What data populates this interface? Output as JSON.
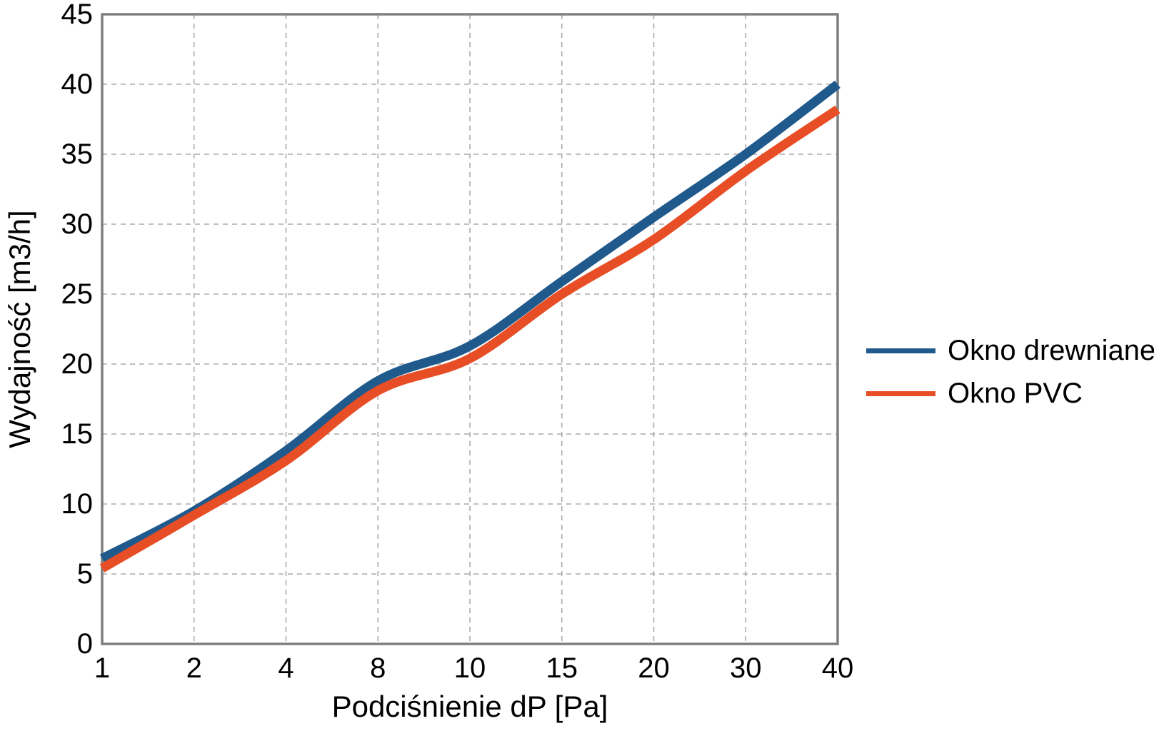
{
  "chart_data": {
    "type": "line",
    "title": "",
    "xlabel": "Podciśnienie dP [Pa]",
    "ylabel": "Wydajność [m3/h]",
    "categories": [
      1,
      2,
      4,
      8,
      10,
      15,
      20,
      30,
      40
    ],
    "x_tick_labels": [
      "1",
      "2",
      "4",
      "8",
      "10",
      "15",
      "20",
      "30",
      "40"
    ],
    "y_ticks": [
      0,
      5,
      10,
      15,
      20,
      25,
      30,
      35,
      40,
      45
    ],
    "ylim": [
      0,
      45
    ],
    "grid": "dashed-both-axes",
    "legend_position": "right-middle",
    "series": [
      {
        "name": "Okno drewniane",
        "color": "#20598C",
        "values": [
          6.1,
          9.5,
          13.8,
          18.8,
          21.3,
          25.9,
          30.5,
          35.0,
          40.0
        ]
      },
      {
        "name": "Okno PVC",
        "color": "#E84E25",
        "values": [
          5.4,
          9.2,
          13.1,
          18.1,
          20.4,
          25.0,
          28.9,
          33.8,
          38.2
        ]
      }
    ],
    "axis_color": "#7F7F7F",
    "grid_color": "#ABABAB",
    "line_width": 13
  }
}
